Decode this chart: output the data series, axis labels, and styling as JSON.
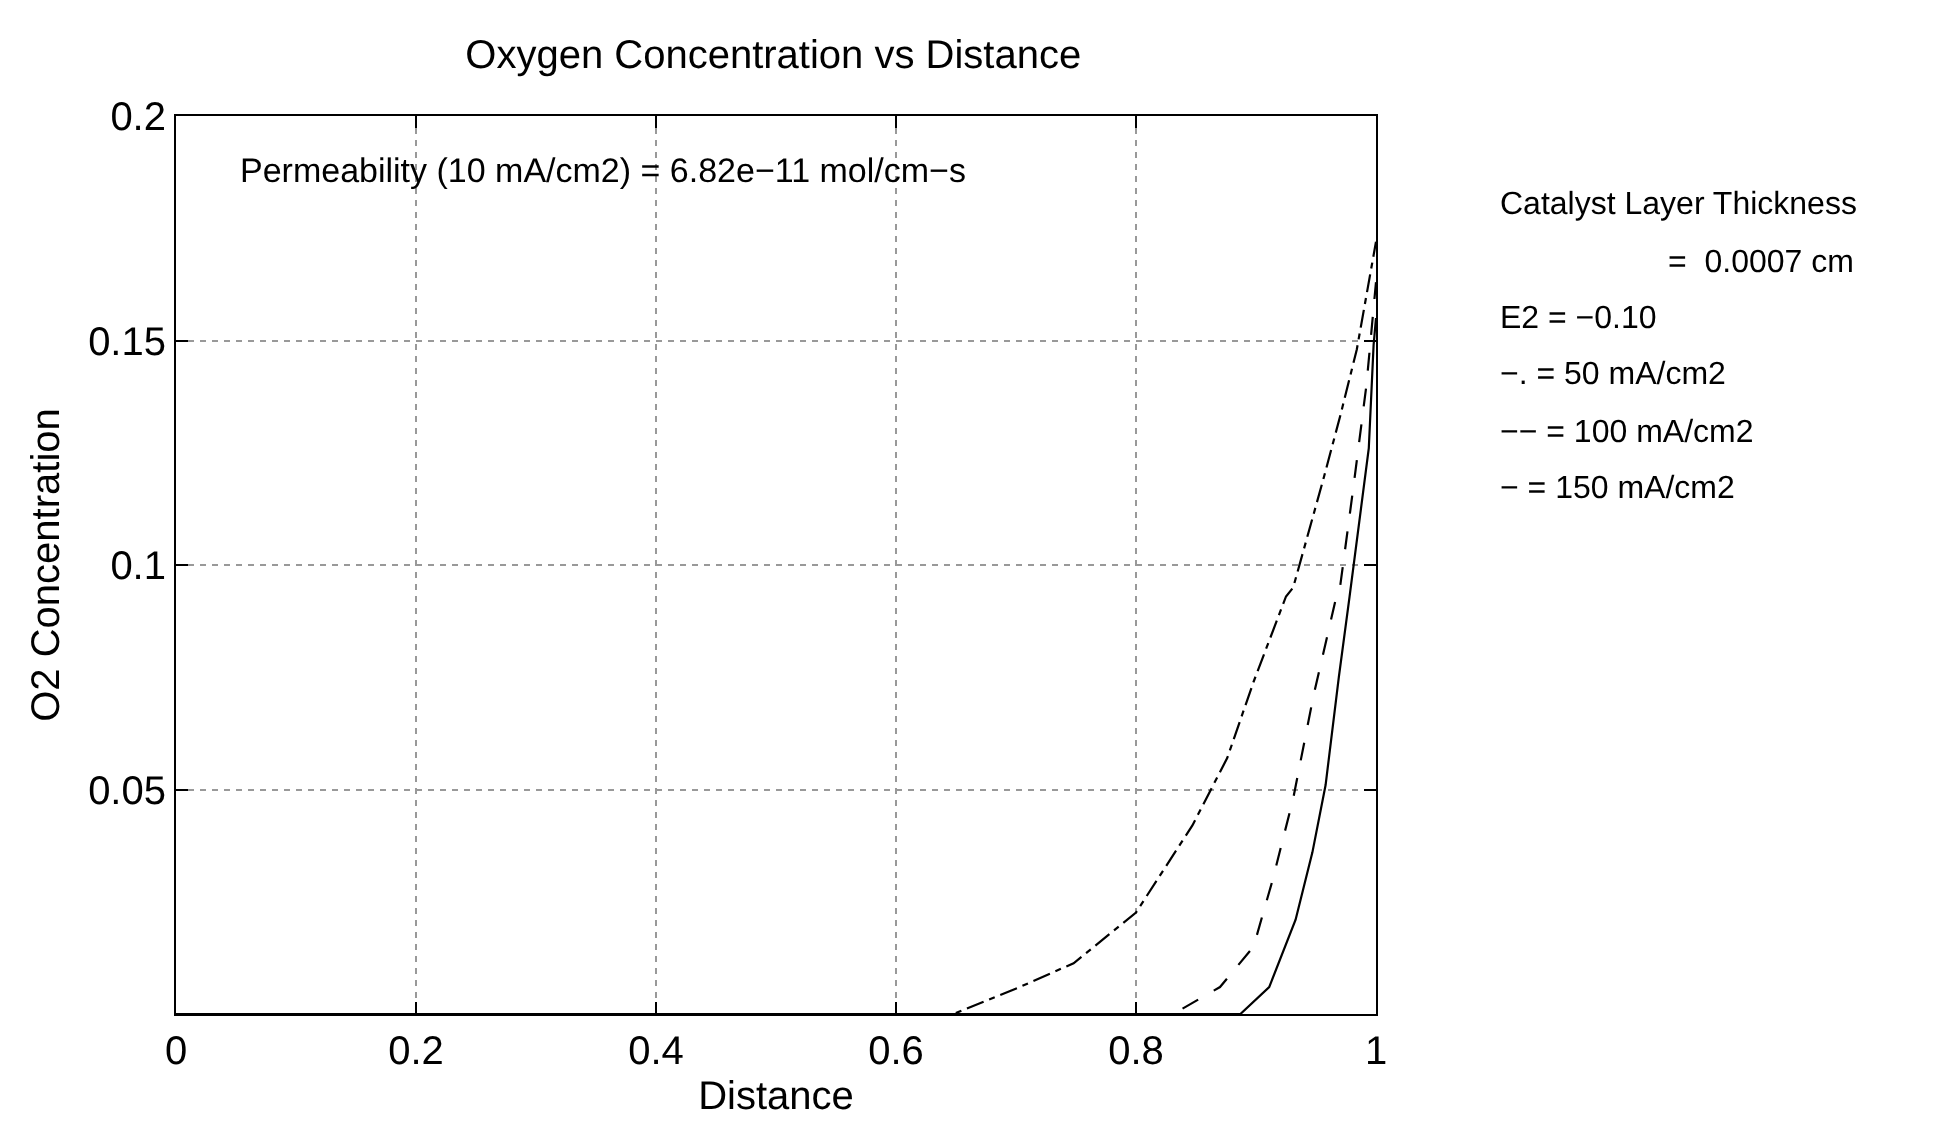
{
  "chart_data": {
    "type": "line",
    "title": "Oxygen Concentration vs Distance",
    "xlabel": "Distance",
    "ylabel": "O2 Concentration",
    "xlim": [
      0,
      1
    ],
    "xticks": [
      0,
      0.2,
      0.4,
      0.6,
      0.8,
      1
    ],
    "ylim": [
      0,
      0.2
    ],
    "yticks": [
      0.05,
      0.1,
      0.15,
      0.2
    ],
    "grid": true,
    "annotations": [
      "Permeability (10 mA/cm2) = 6.82e−11 mol/cm−s",
      "Catalyst Layer Thickness",
      "=  0.0007 cm",
      "E2 = −0.10",
      "−. = 50 mA/cm2",
      "−− = 100 mA/cm2",
      "− = 150 mA/cm2"
    ],
    "series": [
      {
        "color": "#000000",
        "line_style": "dashdot",
        "x": [
          0,
          0.648,
          0.703,
          0.748,
          0.8,
          0.847,
          0.876,
          0.898,
          0.925,
          0.931,
          0.956,
          0.97,
          0.984,
          1
        ],
        "values": [
          0,
          0,
          0.006,
          0.0113,
          0.0226,
          0.042,
          0.057,
          0.074,
          0.093,
          0.095,
          0.119,
          0.133,
          0.148,
          0.172
        ]
      },
      {
        "color": "#000000",
        "line_style": "dashed",
        "x": [
          0,
          0.831,
          0.87,
          0.898,
          0.914,
          0.931,
          0.948,
          0.967,
          0.97,
          0.981,
          0.992,
          1
        ],
        "values": [
          0,
          0,
          0.006,
          0.015,
          0.03,
          0.048,
          0.071,
          0.093,
          0.095,
          0.117,
          0.14,
          0.163
        ]
      },
      {
        "color": "#000000",
        "line_style": "solid",
        "x": [
          0,
          0.887,
          0.911,
          0.933,
          0.947,
          0.958,
          0.969,
          0.978,
          0.994,
          0.998,
          1
        ],
        "values": [
          0,
          0,
          0.006,
          0.021,
          0.036,
          0.051,
          0.075,
          0.093,
          0.126,
          0.149,
          0.155
        ]
      }
    ]
  }
}
